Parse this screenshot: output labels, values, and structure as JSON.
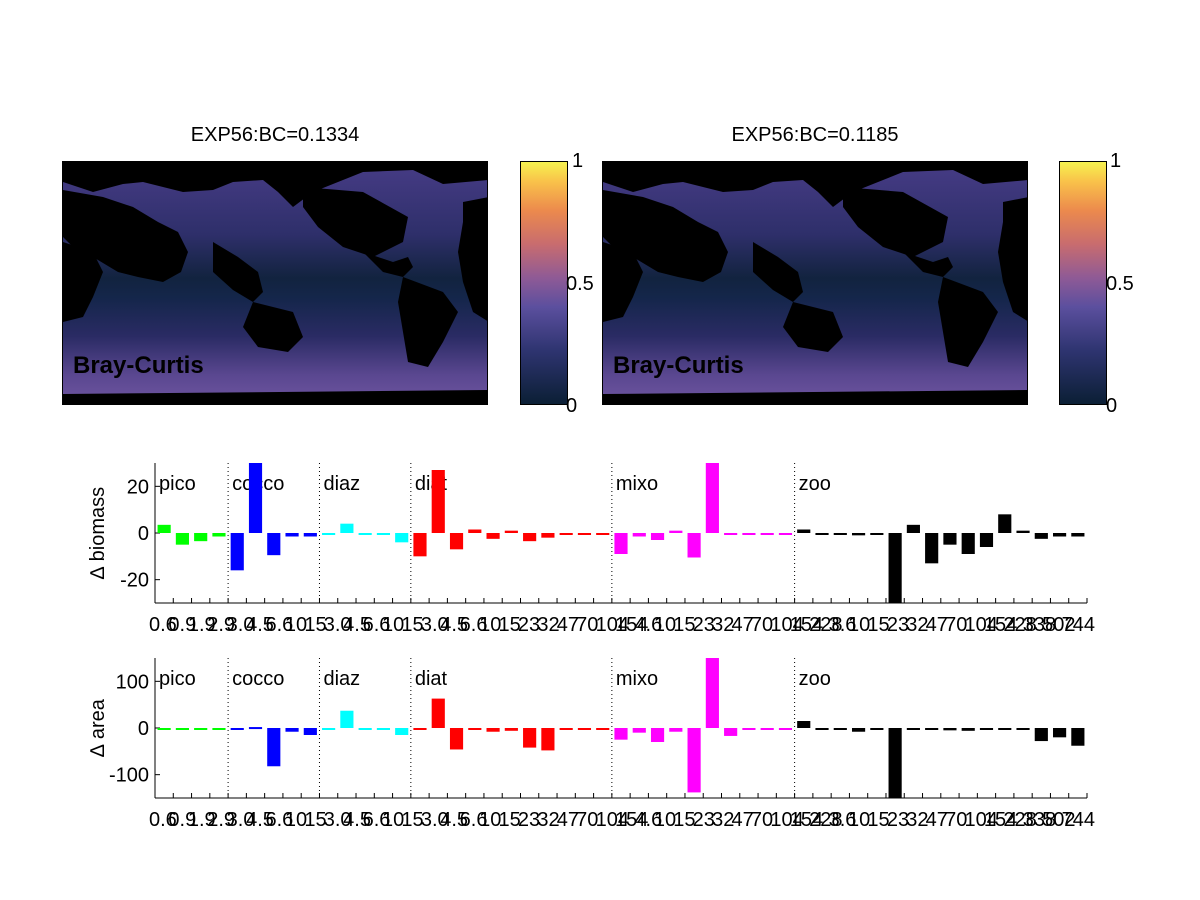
{
  "maps": [
    {
      "title": "EXP56:BC=0.1334",
      "label": "Bray-Curtis"
    },
    {
      "title": "EXP56:BC=0.1185",
      "label": "Bray-Curtis"
    }
  ],
  "colorbar": {
    "ticks": [
      "1",
      "0.5",
      "0"
    ],
    "range": [
      0,
      1
    ]
  },
  "groups": [
    {
      "name": "pico",
      "color": "#00ff00"
    },
    {
      "name": "cocco",
      "color": "#0000ff"
    },
    {
      "name": "diaz",
      "color": "#00ffff"
    },
    {
      "name": "diat",
      "color": "#ff0000"
    },
    {
      "name": "mixo",
      "color": "#ff00ff"
    },
    {
      "name": "zoo",
      "color": "#000000"
    }
  ],
  "chart_data": [
    {
      "type": "bar",
      "ylabel": "∆ biomass",
      "ylim": [
        -30,
        30
      ],
      "yticks": [
        "20",
        "0",
        "-20"
      ],
      "tick_labels": "0.6 0.9 1.9 2.9 3.0 4.5 6.6 10 15 3.0 4.5 6.6 10 15 3.0 4.5 6.6 10 15 23 32 47 70 104 154 4.6 10 15 23 32 47 70 104 154 228 3.6 10 15 23 32 47 70 104 154 228 338 502 744",
      "groups": [
        "pico",
        "pico",
        "pico",
        "pico",
        "cocco",
        "cocco",
        "cocco",
        "cocco",
        "cocco",
        "diaz",
        "diaz",
        "diaz",
        "diaz",
        "diaz",
        "diat",
        "diat",
        "diat",
        "diat",
        "diat",
        "diat",
        "diat",
        "diat",
        "diat",
        "diat",
        "diat",
        "mixo",
        "mixo",
        "mixo",
        "mixo",
        "mixo",
        "mixo",
        "mixo",
        "mixo",
        "mixo",
        "mixo",
        "zoo",
        "zoo",
        "zoo",
        "zoo",
        "zoo",
        "zoo",
        "zoo",
        "zoo",
        "zoo",
        "zoo",
        "zoo",
        "zoo",
        "zoo",
        "zoo",
        "zoo",
        "zoo"
      ],
      "values": [
        3.5,
        -5,
        -3.5,
        -1.5,
        -16,
        30,
        -9.5,
        -1.5,
        -1.5,
        -0.5,
        4,
        0,
        0,
        -4,
        -10,
        27,
        -7,
        1.5,
        -2.5,
        1,
        -3.5,
        -2,
        0,
        0,
        0,
        -9,
        -1.5,
        -3,
        1,
        -10.5,
        30,
        0,
        0,
        0,
        0,
        1.5,
        -0.5,
        0,
        -1,
        0,
        -30,
        3.5,
        -13,
        -5,
        -9,
        -6,
        8,
        1,
        -2.5,
        -1.5,
        -1.5
      ]
    },
    {
      "type": "bar",
      "ylabel": "∆ area",
      "ylim": [
        -150,
        150
      ],
      "yticks": [
        "100",
        "0",
        "-100"
      ],
      "tick_labels": "0.6 0.9 1.9 2.9 3.0 4.5 6.6 10 15 3.0 4.5 6.6 10 15 3.0 4.5 6.6 10 15 23 32 47 70 104 154 4.6 10 15 23 32 47 70 104 154 228 3.6 10 15 23 32 47 70 104 154 228 338 502 744",
      "groups": [
        "pico",
        "pico",
        "pico",
        "pico",
        "cocco",
        "cocco",
        "cocco",
        "cocco",
        "cocco",
        "diaz",
        "diaz",
        "diaz",
        "diaz",
        "diaz",
        "diat",
        "diat",
        "diat",
        "diat",
        "diat",
        "diat",
        "diat",
        "diat",
        "diat",
        "diat",
        "diat",
        "mixo",
        "mixo",
        "mixo",
        "mixo",
        "mixo",
        "mixo",
        "mixo",
        "mixo",
        "mixo",
        "mixo",
        "zoo",
        "zoo",
        "zoo",
        "zoo",
        "zoo",
        "zoo",
        "zoo",
        "zoo",
        "zoo",
        "zoo",
        "zoo",
        "zoo",
        "zoo",
        "zoo",
        "zoo",
        "zoo"
      ],
      "values": [
        0,
        0,
        0,
        0,
        -3,
        2,
        -82,
        -8,
        -15,
        0,
        37,
        0,
        0,
        -15,
        0,
        63,
        -46,
        -3,
        -8,
        -6,
        -42,
        -48,
        0,
        0,
        0,
        -25,
        -10,
        -30,
        -8,
        -138,
        150,
        -17,
        -3,
        0,
        0,
        15,
        0,
        0,
        -8,
        0,
        -150,
        0,
        -3,
        -5,
        -6,
        -4,
        -4,
        -3,
        -28,
        -20,
        -38
      ]
    }
  ]
}
